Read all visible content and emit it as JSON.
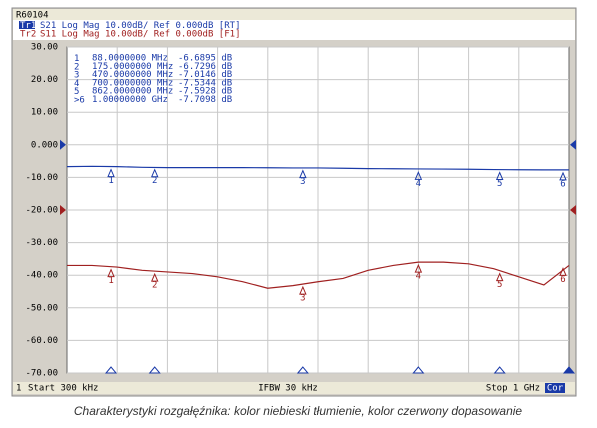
{
  "screen": {
    "id": "R60104",
    "traces": [
      {
        "tag": "Tr1",
        "text": "S21 Log Mag 10.00dB/ Ref 0.000dB [RT]"
      },
      {
        "tag": "Tr2",
        "text": "S11 Log Mag 10.00dB/ Ref 0.000dB [F1]"
      }
    ],
    "footer": {
      "channel": "1",
      "start": "Start 300 kHz",
      "ifbw": "IFBW 30 kHz",
      "stop": "Stop 1 GHz",
      "cor": "Cor"
    }
  },
  "caption": "Charakterystyki rozgałęźnika: kolor niebieski tłumienie, kolor czerwony dopasowanie",
  "chart_data": {
    "type": "line",
    "xlim": [
      0.3,
      1000
    ],
    "ylim": [
      -70,
      30
    ],
    "yticks": [
      {
        "value": 30,
        "label": "30.00"
      },
      {
        "value": 20,
        "label": "20.00"
      },
      {
        "value": 10,
        "label": "10.00"
      },
      {
        "value": 0,
        "label": "0.000"
      },
      {
        "value": -10,
        "label": "-10.00"
      },
      {
        "value": -20,
        "label": "-20.00"
      },
      {
        "value": -30,
        "label": "-30.00"
      },
      {
        "value": -40,
        "label": "-40.00"
      },
      {
        "value": -50,
        "label": "-50.00"
      },
      {
        "value": -60,
        "label": "-60.00"
      },
      {
        "value": -70,
        "label": "-70.00"
      }
    ],
    "grid": true,
    "x": [
      0.3,
      50,
      100,
      150,
      200,
      250,
      300,
      350,
      400,
      450,
      500,
      550,
      600,
      650,
      700,
      750,
      800,
      850,
      900,
      950,
      1000
    ],
    "series": [
      {
        "name": "S21",
        "color": "#1a3aa8",
        "ref": 0,
        "values": [
          -6.7,
          -6.6,
          -6.7,
          -6.9,
          -7.0,
          -7.0,
          -7.0,
          -7.0,
          -7.05,
          -7.1,
          -7.1,
          -7.2,
          -7.3,
          -7.35,
          -7.4,
          -7.45,
          -7.5,
          -7.6,
          -7.65,
          -7.7,
          -7.7
        ]
      },
      {
        "name": "S11",
        "color": "#a02020",
        "ref": -20,
        "values": [
          -37,
          -37,
          -37.5,
          -38.5,
          -39,
          -39.5,
          -40.5,
          -42,
          -44,
          -43.2,
          -42,
          -41,
          -38.5,
          -37,
          -36,
          -36,
          -36.5,
          -38,
          -40.5,
          -43,
          -37
        ]
      }
    ],
    "active_prefix": ">",
    "markers": [
      {
        "id": "1",
        "x": 88,
        "x_label": "88.0000000 MHz",
        "value": -6.6895,
        "value_label": "-6.6895 dB"
      },
      {
        "id": "2",
        "x": 175,
        "x_label": "175.0000000 MHz",
        "value": -6.7296,
        "value_label": "-6.7296 dB"
      },
      {
        "id": "3",
        "x": 470,
        "x_label": "470.0000000 MHz",
        "value": -7.0146,
        "value_label": "-7.0146 dB"
      },
      {
        "id": "4",
        "x": 700,
        "x_label": "700.0000000 MHz",
        "value": -7.5344,
        "value_label": "-7.5344 dB"
      },
      {
        "id": "5",
        "x": 862,
        "x_label": "862.0000000 MHz",
        "value": -7.5928,
        "value_label": "-7.5928 dB"
      },
      {
        "id": "6",
        "x": 1000,
        "x_label": "1.00000000 GHz",
        "value": -7.7098,
        "value_label": "-7.7098 dB"
      }
    ]
  }
}
